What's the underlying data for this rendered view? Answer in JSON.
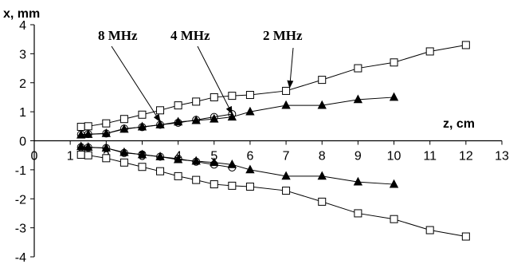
{
  "chart_data": {
    "type": "scatter",
    "xlabel": "z, cm",
    "ylabel": "x, mm",
    "xlim": [
      0,
      13
    ],
    "ylim": [
      -4,
      4
    ],
    "x_ticks": [
      0,
      1,
      2,
      3,
      4,
      5,
      6,
      7,
      8,
      9,
      10,
      11,
      12,
      13
    ],
    "y_ticks": [
      -4,
      -3,
      -2,
      -1,
      0,
      1,
      2,
      3,
      4
    ],
    "grid": false,
    "series": [
      {
        "name": "2 MHz",
        "marker": "square-open",
        "color": "#000000",
        "branches": [
          {
            "x": [
              1.3,
              1.5,
              2,
              2.5,
              3,
              3.5,
              4,
              4.5,
              5,
              5.5,
              6,
              7,
              8,
              9,
              10,
              11,
              12
            ],
            "y": [
              0.48,
              0.5,
              0.6,
              0.75,
              0.9,
              1.05,
              1.22,
              1.35,
              1.5,
              1.55,
              1.58,
              1.72,
              2.1,
              2.5,
              2.7,
              3.08,
              3.3
            ]
          },
          {
            "x": [
              1.3,
              1.5,
              2,
              2.5,
              3,
              3.5,
              4,
              4.5,
              5,
              5.5,
              6,
              7,
              8,
              9,
              10,
              11,
              12
            ],
            "y": [
              -0.48,
              -0.5,
              -0.6,
              -0.75,
              -0.9,
              -1.05,
              -1.22,
              -1.35,
              -1.5,
              -1.55,
              -1.58,
              -1.72,
              -2.1,
              -2.5,
              -2.7,
              -3.08,
              -3.3
            ]
          }
        ]
      },
      {
        "name": "4 MHz",
        "marker": "triangle-filled",
        "color": "#000000",
        "branches": [
          {
            "x": [
              1.3,
              1.5,
              2,
              2.5,
              3,
              3.5,
              4,
              4.5,
              5,
              5.5,
              6,
              7,
              8,
              9,
              10
            ],
            "y": [
              0.2,
              0.22,
              0.25,
              0.4,
              0.48,
              0.55,
              0.65,
              0.7,
              0.75,
              0.82,
              1.0,
              1.22,
              1.22,
              1.42,
              1.5
            ]
          },
          {
            "x": [
              1.3,
              1.5,
              2,
              2.5,
              3,
              3.5,
              4,
              4.5,
              5,
              5.5,
              6,
              7,
              8,
              9,
              10
            ],
            "y": [
              -0.2,
              -0.22,
              -0.25,
              -0.4,
              -0.48,
              -0.55,
              -0.65,
              -0.7,
              -0.75,
              -0.82,
              -1.0,
              -1.22,
              -1.22,
              -1.42,
              -1.5
            ]
          }
        ]
      },
      {
        "name": "8 MHz",
        "marker": "circle-open",
        "color": "#000000",
        "branches": [
          {
            "x": [
              1.3,
              1.5,
              2,
              2.5,
              3,
              3.5,
              4,
              4.5,
              5,
              5.5
            ],
            "y": [
              0.22,
              0.23,
              0.25,
              0.42,
              0.47,
              0.55,
              0.62,
              0.72,
              0.82,
              0.92
            ]
          },
          {
            "x": [
              1.3,
              1.5,
              2,
              2.5,
              3,
              3.5,
              4,
              4.5,
              5,
              5.5
            ],
            "y": [
              -0.22,
              -0.23,
              -0.25,
              -0.42,
              -0.47,
              -0.55,
              -0.62,
              -0.72,
              -0.82,
              -0.92
            ]
          }
        ]
      }
    ],
    "annotations": [
      {
        "text": "8 MHz",
        "target_series": "8 MHz",
        "target_x": 3.5,
        "target_y": 0.55
      },
      {
        "text": "4 MHz",
        "target_series": "4 MHz",
        "target_x": 5.5,
        "target_y": 0.82
      },
      {
        "text": "2 MHz",
        "target_series": "2 MHz",
        "target_x": 7.1,
        "target_y": 1.72
      }
    ]
  }
}
